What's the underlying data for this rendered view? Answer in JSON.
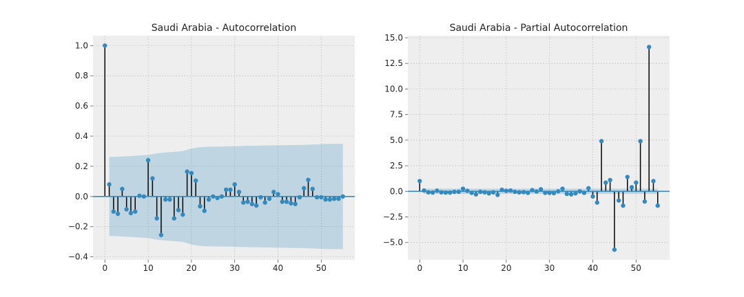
{
  "colors": {
    "background": "#ffffff",
    "axes_face": "#eeeeee",
    "grid": "#c8c8c8",
    "stem": "#000000",
    "marker": "#348abd",
    "zero_line": "#348abd",
    "confidence_band": "#348abd"
  },
  "chart_data": [
    {
      "type": "stem",
      "title": "Saudi Arabia - Autocorrelation",
      "xlabel": "",
      "ylabel": "",
      "xlim": [
        -2.75,
        57.75
      ],
      "ylim": [
        -0.42,
        1.065
      ],
      "xticks": [
        0,
        10,
        20,
        30,
        40,
        50
      ],
      "yticks": [
        -0.4,
        -0.2,
        0.0,
        0.2,
        0.4,
        0.6,
        0.8,
        1.0
      ],
      "ytick_labels": [
        "−0.4",
        "−0.2",
        "0.0",
        "0.2",
        "0.4",
        "0.6",
        "0.8",
        "1.0"
      ],
      "grid": true,
      "x": [
        0,
        1,
        2,
        3,
        4,
        5,
        6,
        7,
        8,
        9,
        10,
        11,
        12,
        13,
        14,
        15,
        16,
        17,
        18,
        19,
        20,
        21,
        22,
        23,
        24,
        25,
        26,
        27,
        28,
        29,
        30,
        31,
        32,
        33,
        34,
        35,
        36,
        37,
        38,
        39,
        40,
        41,
        42,
        43,
        44,
        45,
        46,
        47,
        48,
        49,
        50,
        51,
        52,
        53,
        54,
        55
      ],
      "values": [
        1.0,
        0.08,
        -0.1,
        -0.115,
        0.05,
        -0.085,
        -0.11,
        -0.1,
        0.005,
        0.0,
        0.24,
        0.12,
        -0.145,
        -0.255,
        -0.02,
        -0.02,
        -0.145,
        -0.09,
        -0.12,
        0.165,
        0.155,
        0.105,
        -0.065,
        -0.095,
        -0.02,
        0.0,
        -0.01,
        0.0,
        0.045,
        0.045,
        0.08,
        0.03,
        -0.04,
        -0.035,
        -0.05,
        -0.06,
        -0.005,
        -0.04,
        -0.015,
        0.03,
        0.015,
        -0.035,
        -0.035,
        -0.045,
        -0.05,
        -0.005,
        0.055,
        0.11,
        0.05,
        -0.005,
        -0.005,
        -0.02,
        -0.02,
        -0.015,
        -0.015,
        0.0
      ],
      "confidence_band": {
        "x": [
          1,
          2,
          4,
          6,
          8,
          10,
          12,
          14,
          16,
          18,
          20,
          22,
          24,
          26,
          28,
          30,
          32,
          34,
          36,
          38,
          40,
          42,
          44,
          46,
          48,
          50,
          52,
          55
        ],
        "upper": [
          0.262,
          0.262,
          0.265,
          0.268,
          0.272,
          0.275,
          0.286,
          0.292,
          0.296,
          0.301,
          0.318,
          0.327,
          0.33,
          0.331,
          0.332,
          0.333,
          0.335,
          0.336,
          0.337,
          0.338,
          0.339,
          0.34,
          0.341,
          0.342,
          0.344,
          0.347,
          0.349,
          0.349
        ]
      }
    },
    {
      "type": "stem",
      "title": "Saudi Arabia - Partial Autocorrelation",
      "xlabel": "",
      "ylabel": "",
      "xlim": [
        -2.75,
        57.75
      ],
      "ylim": [
        -6.7,
        15.2
      ],
      "xticks": [
        0,
        10,
        20,
        30,
        40,
        50
      ],
      "yticks": [
        -5.0,
        -2.5,
        0.0,
        2.5,
        5.0,
        7.5,
        10.0,
        12.5,
        15.0
      ],
      "ytick_labels": [
        "−5.0",
        "−2.5",
        "0.0",
        "2.5",
        "5.0",
        "7.5",
        "10.0",
        "12.5",
        "15.0"
      ],
      "grid": true,
      "x": [
        0,
        1,
        2,
        3,
        4,
        5,
        6,
        7,
        8,
        9,
        10,
        11,
        12,
        13,
        14,
        15,
        16,
        17,
        18,
        19,
        20,
        21,
        22,
        23,
        24,
        25,
        26,
        27,
        28,
        29,
        30,
        31,
        32,
        33,
        34,
        35,
        36,
        37,
        38,
        39,
        40,
        41,
        42,
        43,
        44,
        45,
        46,
        47,
        48,
        49,
        50,
        51,
        52,
        53,
        54,
        55
      ],
      "values": [
        1.0,
        0.08,
        -0.1,
        -0.12,
        0.06,
        -0.1,
        -0.12,
        -0.12,
        -0.05,
        -0.05,
        0.25,
        0.05,
        -0.15,
        -0.3,
        -0.05,
        -0.1,
        -0.2,
        -0.1,
        -0.35,
        0.15,
        0.05,
        0.08,
        -0.05,
        -0.1,
        -0.08,
        -0.15,
        0.12,
        -0.02,
        0.2,
        -0.15,
        -0.15,
        -0.18,
        0.0,
        0.25,
        -0.25,
        -0.3,
        -0.2,
        0.0,
        -0.15,
        0.3,
        -0.5,
        -1.1,
        4.9,
        0.85,
        1.1,
        -5.7,
        -0.9,
        -1.4,
        1.4,
        0.4,
        0.85,
        4.9,
        -1.0,
        14.1,
        1.0,
        -1.4
      ],
      "confidence_band": {
        "x": [
          1,
          55
        ],
        "upper": [
          0.262,
          0.262
        ]
      }
    }
  ]
}
